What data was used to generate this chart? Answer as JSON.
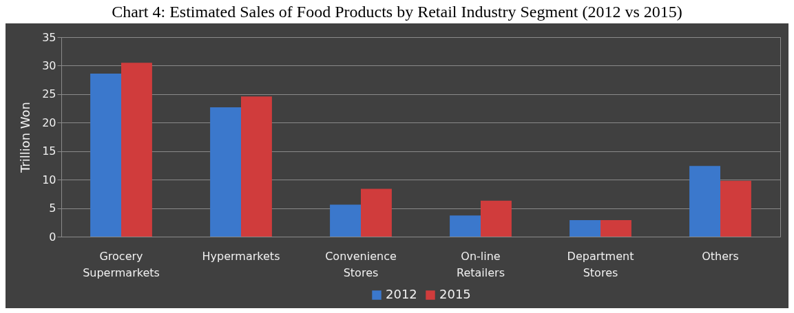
{
  "chart_data": {
    "type": "bar",
    "title": "Chart 4: Estimated Sales of Food Products by Retail Industry Segment (2012 vs 2015)",
    "ylabel": "Trillion Won",
    "categories": [
      "Grocery Supermarkets",
      "Hypermarkets",
      "Convenience Stores",
      "On-line Retailers",
      "Department Stores",
      "Others"
    ],
    "series": [
      {
        "name": "2012",
        "color": "#3b78cc",
        "values": [
          28.6,
          22.7,
          5.6,
          3.7,
          2.9,
          12.4
        ]
      },
      {
        "name": "2015",
        "color": "#d03c3c",
        "values": [
          30.5,
          24.6,
          8.4,
          6.3,
          2.9,
          9.8
        ]
      }
    ],
    "ylim": [
      0,
      35
    ],
    "yticks": [
      0,
      5,
      10,
      15,
      20,
      25,
      30,
      35
    ],
    "grid": "y",
    "legend": "bottom"
  }
}
